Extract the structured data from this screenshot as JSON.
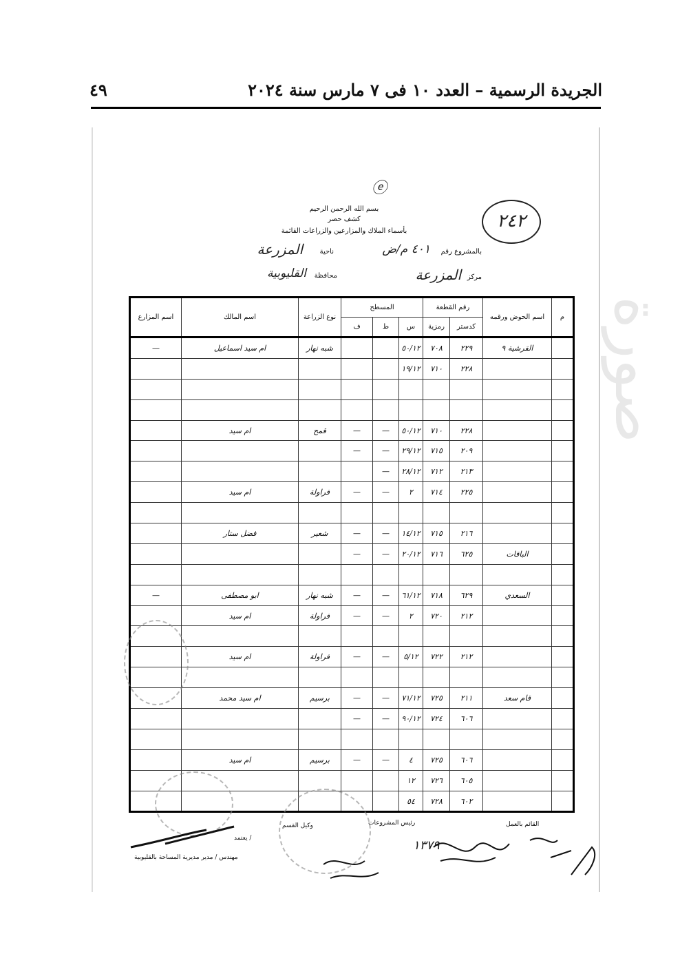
{
  "running_head": {
    "title": "الجريدة الرسمية – العدد ١٠ فى ٧ مارس سنة ٢٠٢٤",
    "page_number": "٤٩"
  },
  "form": {
    "basmala": "بسم الله الرحمن الرحيم",
    "doc_title": "كشف حصر",
    "subtitle": "بأسماء الملاك والمزارعين والزراعات القائمة",
    "project_label": "بالمشروع رقم",
    "project_value": "٤٠١ م/ض",
    "village_label": "ناحية",
    "village_value": "المزرعة",
    "markaz_label": "مركز",
    "markaz_value": "المزرعة",
    "governorate_label": "محافظة",
    "governorate_value": "القليوبية",
    "circled_number": "٢٤٢"
  },
  "table": {
    "headers": {
      "serial": "م",
      "basin": "اسم الحوض ورقمه",
      "plot_number": "رقم القطعة",
      "cadastral": "كدستر",
      "code": "رمزية",
      "area": "المسطح",
      "sahm": "س",
      "qirat": "ط",
      "feddan": "ف",
      "crop": "نوع الزراعة",
      "owner": "اسم المالك",
      "farmer": "اسم المزارع"
    },
    "rows": [
      {
        "basin": "القرشية ٩",
        "cad": "٢٢٩",
        "code": "٧٠٨",
        "s": "٥٠/١٢",
        "t": "",
        "f": "",
        "crop": "شبه نهار",
        "owner": "ام سيد اسماعيل",
        "farmer": "—"
      },
      {
        "basin": "",
        "cad": "٢٢٨",
        "code": "٧١٠",
        "s": "١٩/١٢",
        "t": "",
        "f": "",
        "crop": "",
        "owner": "",
        "farmer": ""
      },
      {},
      {},
      {
        "basin": "",
        "cad": "٢٢٨",
        "code": "٧١٠",
        "s": "٥٠/١٢",
        "t": "—",
        "f": "—",
        "crop": "قمح",
        "owner": "ام سيد",
        "farmer": ""
      },
      {
        "basin": "",
        "cad": "٢٠٩",
        "code": "٧١٥",
        "s": "٢٩/١٢",
        "t": "—",
        "f": "—",
        "crop": "",
        "owner": "",
        "farmer": ""
      },
      {
        "basin": "",
        "cad": "٢١٣",
        "code": "٧١٢",
        "s": "٢٨/١٢",
        "t": "—",
        "f": "",
        "crop": "",
        "owner": "",
        "farmer": ""
      },
      {
        "basin": "",
        "cad": "٢٢٥",
        "code": "٧١٤",
        "s": "٢",
        "t": "—",
        "f": "—",
        "crop": "فراولة",
        "owner": "ام سيد",
        "farmer": ""
      },
      {},
      {
        "basin": "",
        "cad": "٢١٦",
        "code": "٧١٥",
        "s": "١٤/١٢",
        "t": "—",
        "f": "—",
        "crop": "شعير",
        "owner": "فضل ستار",
        "farmer": ""
      },
      {
        "basin": "الباقات",
        "cad": "٦٢٥",
        "code": "٧١٦",
        "s": "٢٠/١٢",
        "t": "—",
        "f": "—",
        "crop": "",
        "owner": "",
        "farmer": ""
      },
      {},
      {
        "basin": "السعدي",
        "cad": "٦٢٩",
        "code": "٧١٨",
        "s": "٦١/١٢",
        "t": "—",
        "f": "—",
        "crop": "شبه نهار",
        "owner": "ابو مصطفى",
        "farmer": "—"
      },
      {
        "basin": "",
        "cad": "٢١٢",
        "code": "٧٢٠",
        "s": "٢",
        "t": "—",
        "f": "—",
        "crop": "فراولة",
        "owner": "ام سيد",
        "farmer": ""
      },
      {},
      {
        "basin": "",
        "cad": "٢١٢",
        "code": "٧٢٢",
        "s": "٥/١٢",
        "t": "—",
        "f": "—",
        "crop": "فراولة",
        "owner": "ام سيد",
        "farmer": ""
      },
      {},
      {
        "basin": "قام سعد",
        "cad": "٢١١",
        "code": "٧٢٥",
        "s": "٧١/١٢",
        "t": "—",
        "f": "—",
        "crop": "برسيم",
        "owner": "ام سيد محمد",
        "farmer": ""
      },
      {
        "basin": "",
        "cad": "٦٠٦",
        "code": "٧٢٤",
        "s": "٩٠/١٢",
        "t": "—",
        "f": "—",
        "crop": "",
        "owner": "",
        "farmer": ""
      },
      {},
      {
        "basin": "",
        "cad": "٦٠٦",
        "code": "٧٢٥",
        "s": "٤",
        "t": "—",
        "f": "—",
        "crop": "برسيم",
        "owner": "ام سيد",
        "farmer": ""
      },
      {
        "basin": "",
        "cad": "٦٠٥",
        "code": "٧٢٦",
        "s": "١٢",
        "t": "",
        "f": "",
        "crop": "",
        "owner": "",
        "farmer": ""
      },
      {
        "basin": "",
        "cad": "٦٠٢",
        "code": "٧٢٨",
        "s": "٥٤",
        "t": "",
        "f": "",
        "crop": "",
        "owner": "",
        "farmer": ""
      }
    ]
  },
  "footer": {
    "worker_label": "القائم بالعمل",
    "projects_head_label": "رئيس المشروعات",
    "section_deputy_label": "وكيل القسم",
    "approve_label": "يعتمد /",
    "director_label": "مهندس / مدير مديرية المساحة بالقليوبية",
    "handwritten_number": "١٣٧٩"
  }
}
